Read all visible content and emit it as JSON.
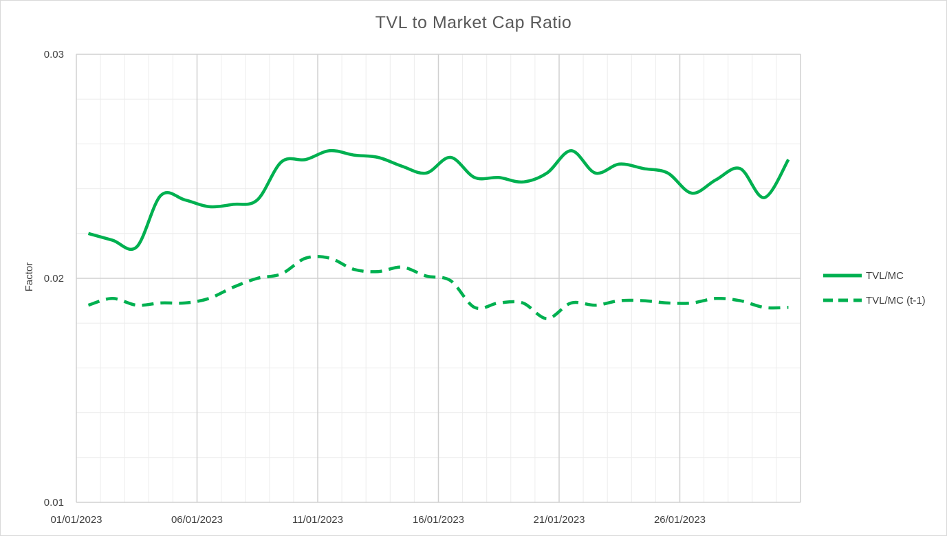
{
  "chart_data": {
    "type": "line",
    "title": "TVL to Market Cap Ratio",
    "xlabel": "",
    "ylabel": "Factor",
    "ylim": [
      0.01,
      0.03
    ],
    "yticks": [
      "0.01",
      "0.02",
      "0.03"
    ],
    "xticks": [
      "01/01/2023",
      "06/01/2023",
      "11/01/2023",
      "16/01/2023",
      "21/01/2023",
      "26/01/2023"
    ],
    "x": [
      "01/01/2023",
      "02/01/2023",
      "03/01/2023",
      "04/01/2023",
      "05/01/2023",
      "06/01/2023",
      "07/01/2023",
      "08/01/2023",
      "09/01/2023",
      "10/01/2023",
      "11/01/2023",
      "12/01/2023",
      "13/01/2023",
      "14/01/2023",
      "15/01/2023",
      "16/01/2023",
      "17/01/2023",
      "18/01/2023",
      "19/01/2023",
      "20/01/2023",
      "21/01/2023",
      "22/01/2023",
      "23/01/2023",
      "24/01/2023",
      "25/01/2023",
      "26/01/2023",
      "27/01/2023",
      "28/01/2023",
      "29/01/2023",
      "30/01/2023"
    ],
    "series": [
      {
        "name": "TVL/MC",
        "style": "solid",
        "color": "#00B050",
        "values": [
          0.022,
          0.0217,
          0.0214,
          0.0237,
          0.0235,
          0.0232,
          0.0233,
          0.0235,
          0.0252,
          0.0253,
          0.0257,
          0.0255,
          0.0254,
          0.025,
          0.0247,
          0.0254,
          0.0245,
          0.0245,
          0.0243,
          0.0247,
          0.0257,
          0.0247,
          0.0251,
          0.0249,
          0.0247,
          0.0238,
          0.0244,
          0.0249,
          0.0236,
          0.0253
        ]
      },
      {
        "name": "TVL/MC (t-1)",
        "style": "dashed",
        "color": "#00B050",
        "values": [
          0.0188,
          0.0191,
          0.0188,
          0.0189,
          0.0189,
          0.0191,
          0.0196,
          0.02,
          0.0202,
          0.0209,
          0.0209,
          0.0204,
          0.0203,
          0.0205,
          0.0201,
          0.0199,
          0.0187,
          0.0189,
          0.0189,
          0.0182,
          0.0189,
          0.0188,
          0.019,
          0.019,
          0.0189,
          0.0189,
          0.0191,
          0.019,
          0.0187,
          0.0187
        ]
      }
    ],
    "grid": true,
    "legend_position": "right"
  }
}
